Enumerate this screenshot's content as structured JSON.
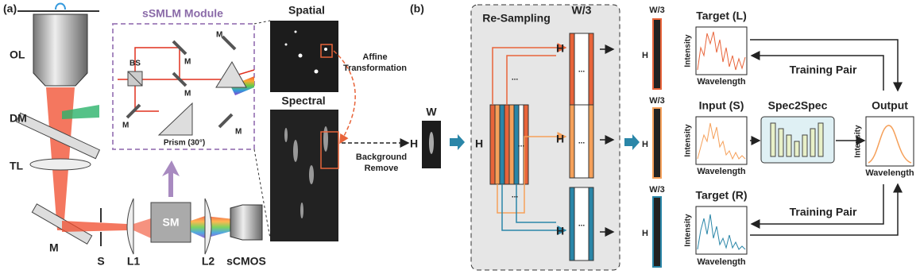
{
  "panel_a": {
    "label": "(a)",
    "module_title": "sSMLM Module",
    "optics": {
      "ol": "OL",
      "dm": "DM",
      "tl": "TL",
      "m": "M",
      "s": "S",
      "l1": "L1",
      "sm": "SM",
      "l2": "L2",
      "scmos": "sCMOS"
    },
    "module_parts": {
      "bs": "BS",
      "mirrors": [
        "M",
        "M",
        "M",
        "M",
        "M"
      ],
      "prism": "Prism (30°)"
    },
    "images": {
      "spatial": "Spatial",
      "spectral": "Spectral"
    },
    "affine": [
      "Affine",
      "Transformation"
    ],
    "background": [
      "Background",
      "Remove"
    ],
    "crop": {
      "width": "W",
      "height": "H"
    }
  },
  "panel_b": {
    "label": "(b)",
    "resampling": {
      "title": "Re-Sampling",
      "width": "W/3",
      "height": "H",
      "dots": [
        "...",
        "...",
        "...",
        "...",
        "...",
        "..."
      ],
      "outputs": [
        "H",
        "H",
        "H"
      ]
    },
    "strips": [
      {
        "width": "W/3",
        "height": "H"
      },
      {
        "width": "W/3",
        "height": "H"
      },
      {
        "width": "W/3",
        "height": "H"
      }
    ],
    "plots": [
      {
        "title": "Target (L)",
        "ylabel": "Intensity",
        "xlabel": "Wavelength"
      },
      {
        "title": "Input (S)",
        "ylabel": "Intensity",
        "xlabel": "Wavelength"
      },
      {
        "title": "Target (R)",
        "ylabel": "Intensity",
        "xlabel": "Wavelength"
      }
    ],
    "training_pair": [
      "Training Pair",
      "Training Pair"
    ],
    "network": "Spec2Spec",
    "output": {
      "title": "Output",
      "ylabel": "Intensity",
      "xlabel": "Wavelength"
    }
  }
}
